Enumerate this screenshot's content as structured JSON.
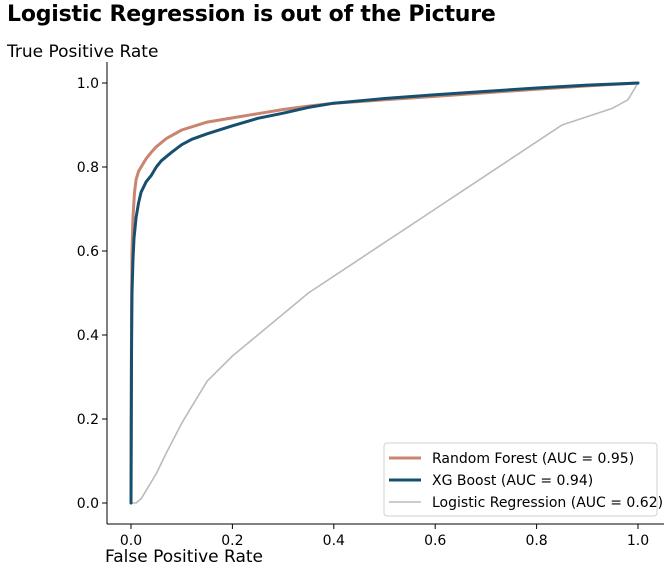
{
  "chart_data": {
    "type": "line",
    "title": "Logistic Regression is out of the Picture",
    "xlabel": "False Positive Rate",
    "ylabel": "True Positive Rate",
    "xlim": [
      -0.05,
      1.05
    ],
    "ylim": [
      -0.05,
      1.05
    ],
    "xticks": [
      0.0,
      0.2,
      0.4,
      0.6,
      0.8,
      1.0
    ],
    "yticks": [
      0.0,
      0.2,
      0.4,
      0.6,
      0.8,
      1.0
    ],
    "xtick_labels": [
      "0.0",
      "0.2",
      "0.4",
      "0.6",
      "0.8",
      "1.0"
    ],
    "ytick_labels": [
      "0.0",
      "0.2",
      "0.4",
      "0.6",
      "0.8",
      "1.0"
    ],
    "grid": false,
    "legend_position": "bottom-right",
    "series": [
      {
        "name": "Random Forest (AUC = 0.95)",
        "color": "#c98570",
        "x": [
          0.0,
          0.001,
          0.002,
          0.004,
          0.007,
          0.01,
          0.015,
          0.02,
          0.03,
          0.04,
          0.05,
          0.07,
          0.1,
          0.15,
          0.2,
          0.25,
          0.3,
          0.35,
          0.4,
          0.5,
          0.6,
          0.7,
          0.8,
          0.9,
          1.0
        ],
        "y": [
          0.0,
          0.45,
          0.6,
          0.68,
          0.74,
          0.77,
          0.79,
          0.8,
          0.82,
          0.835,
          0.848,
          0.868,
          0.888,
          0.907,
          0.917,
          0.927,
          0.937,
          0.945,
          0.952,
          0.96,
          0.968,
          0.977,
          0.985,
          0.993,
          1.0
        ]
      },
      {
        "name": "XG Boost (AUC = 0.94)",
        "color": "#16506e",
        "x": [
          0.0,
          0.001,
          0.002,
          0.004,
          0.006,
          0.01,
          0.015,
          0.02,
          0.03,
          0.04,
          0.05,
          0.06,
          0.08,
          0.1,
          0.12,
          0.15,
          0.2,
          0.25,
          0.3,
          0.35,
          0.4,
          0.5,
          0.6,
          0.7,
          0.8,
          0.9,
          1.0
        ],
        "y": [
          0.0,
          0.35,
          0.5,
          0.58,
          0.63,
          0.68,
          0.715,
          0.74,
          0.765,
          0.78,
          0.8,
          0.815,
          0.835,
          0.853,
          0.866,
          0.879,
          0.898,
          0.916,
          0.928,
          0.942,
          0.952,
          0.963,
          0.972,
          0.98,
          0.988,
          0.995,
          1.0
        ]
      },
      {
        "name": "Logistic Regression (AUC = 0.62)",
        "color": "#bbbbbb",
        "x": [
          0.0,
          0.01,
          0.02,
          0.03,
          0.05,
          0.07,
          0.1,
          0.15,
          0.2,
          0.25,
          0.3,
          0.35,
          0.4,
          0.45,
          0.5,
          0.55,
          0.6,
          0.65,
          0.7,
          0.75,
          0.8,
          0.85,
          0.9,
          0.95,
          0.98,
          1.0
        ],
        "y": [
          0.0,
          0.0,
          0.01,
          0.03,
          0.07,
          0.12,
          0.19,
          0.29,
          0.35,
          0.4,
          0.45,
          0.5,
          0.54,
          0.58,
          0.62,
          0.66,
          0.7,
          0.74,
          0.78,
          0.82,
          0.86,
          0.9,
          0.92,
          0.94,
          0.96,
          1.0
        ]
      }
    ]
  }
}
